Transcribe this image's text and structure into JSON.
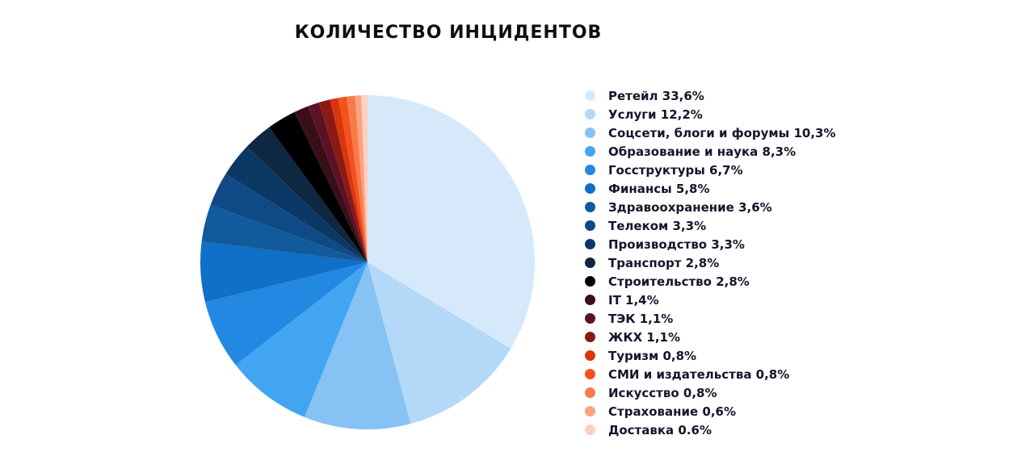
{
  "chart_data": {
    "type": "pie",
    "title": "КОЛИЧЕСТВО ИНЦИДЕНТОВ",
    "slices": [
      {
        "label": "Ретейл 33,6%",
        "value": 33.6,
        "color": "#d6e9fb"
      },
      {
        "label": "Услуги 12,2%",
        "value": 12.2,
        "color": "#b4d9f8"
      },
      {
        "label": "Соцсети, блоги и форумы 10,3%",
        "value": 10.3,
        "color": "#86c2f4"
      },
      {
        "label": "Образование и наука 8,3%",
        "value": 8.3,
        "color": "#42a5f2"
      },
      {
        "label": "Госструктуры 6,7%",
        "value": 6.7,
        "color": "#2388e2"
      },
      {
        "label": "Финансы 5,8%",
        "value": 5.8,
        "color": "#106fc6"
      },
      {
        "label": "Здравоохранение 3,6%",
        "value": 3.6,
        "color": "#115a9c"
      },
      {
        "label": "Телеком 3,3%",
        "value": 3.3,
        "color": "#0f4a87"
      },
      {
        "label": "Производство 3,3%",
        "value": 3.3,
        "color": "#0c3866"
      },
      {
        "label": "Транспорт 2,8%",
        "value": 2.8,
        "color": "#0f2740"
      },
      {
        "label": "Строительство 2,8%",
        "value": 2.8,
        "color": "#000000"
      },
      {
        "label": "IT 1,4%",
        "value": 1.4,
        "color": "#3a0e19"
      },
      {
        "label": "ТЭК 1,1%",
        "value": 1.1,
        "color": "#5b1126"
      },
      {
        "label": "ЖКХ 1,1%",
        "value": 1.1,
        "color": "#8c1a14"
      },
      {
        "label": "Туризм 0,8%",
        "value": 0.8,
        "color": "#d9350e"
      },
      {
        "label": "СМИ и издательства 0,8%",
        "value": 0.8,
        "color": "#f4511e"
      },
      {
        "label": "Искусство 0,8%",
        "value": 0.8,
        "color": "#fa7b4a"
      },
      {
        "label": "Страхование 0,6%",
        "value": 0.6,
        "color": "#fba383"
      },
      {
        "label": "Доставка 0.6%",
        "value": 0.6,
        "color": "#fdd0bf"
      }
    ],
    "legend_position": "right"
  }
}
